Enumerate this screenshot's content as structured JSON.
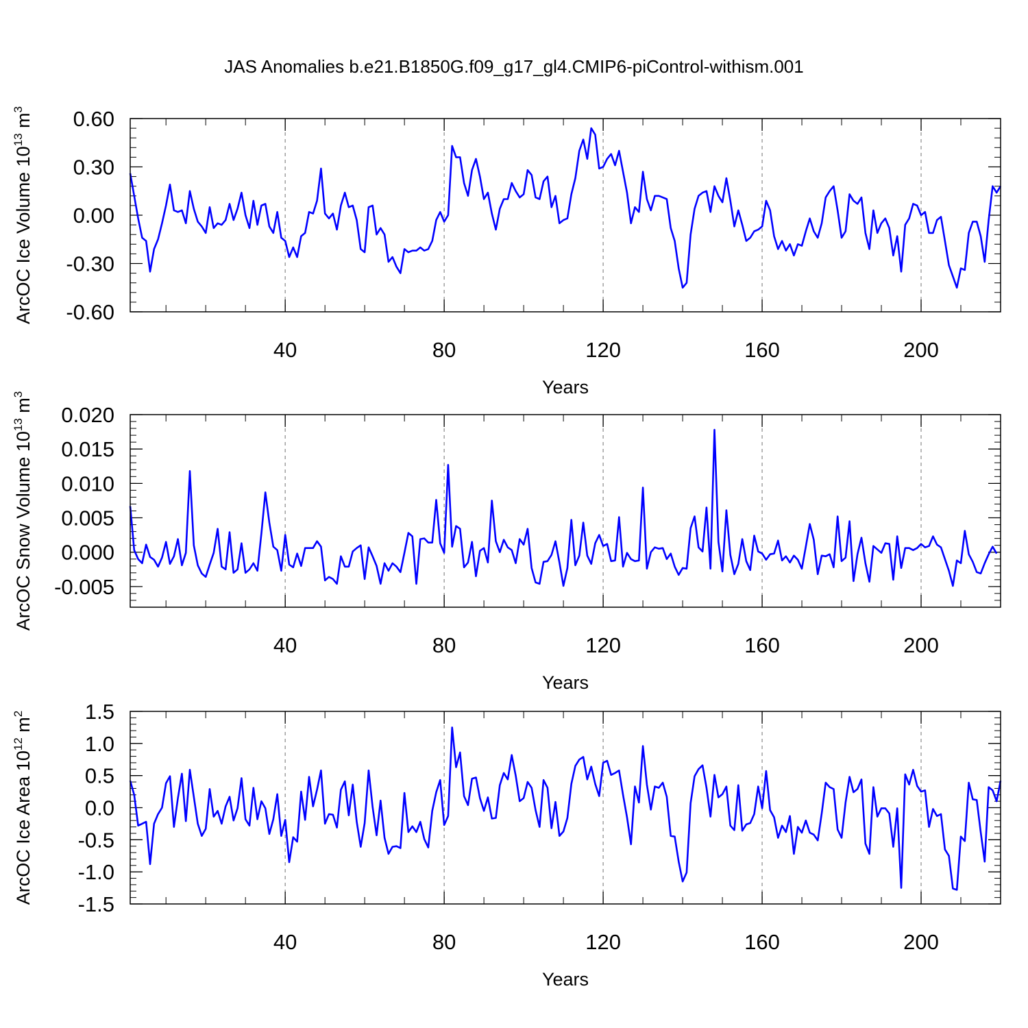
{
  "chart_data": {
    "type": "line",
    "title": "JAS Anomalies b.e21.B1850G.f09_g17_gl4.CMIP6-piControl-withism.001",
    "line_color": "#0000ff",
    "grid_color": "#888888",
    "x_range": [
      1,
      220
    ],
    "x_ticks": [
      40,
      80,
      120,
      160,
      200
    ],
    "x_tick_labels": [
      "40",
      "80",
      "120",
      "160",
      "200"
    ],
    "panels": [
      {
        "name": "ice-volume",
        "ylabel": "ArcOC Ice Volume 10",
        "ylabel_exp": "13",
        "ylabel_unit": " m",
        "ylabel_unit_exp": "3",
        "xlabel": "Years",
        "ylim": [
          -0.6,
          0.6
        ],
        "y_ticks": [
          -0.6,
          -0.3,
          0.0,
          0.3,
          0.6
        ],
        "y_tick_labels": [
          "-0.60",
          "-0.30",
          "0.00",
          "0.30",
          "0.60"
        ],
        "y_minor_step": 0.06,
        "values": [
          0.26,
          0.12,
          -0.02,
          -0.14,
          -0.16,
          -0.35,
          -0.21,
          -0.15,
          -0.05,
          0.06,
          0.19,
          0.03,
          0.02,
          0.03,
          -0.05,
          0.15,
          0.04,
          -0.04,
          -0.07,
          -0.11,
          0.05,
          -0.08,
          -0.05,
          -0.06,
          -0.03,
          0.07,
          -0.03,
          0.04,
          0.14,
          0.0,
          -0.08,
          0.09,
          -0.06,
          0.06,
          0.07,
          -0.07,
          -0.11,
          0.02,
          -0.14,
          -0.16,
          -0.26,
          -0.2,
          -0.26,
          -0.13,
          -0.11,
          0.02,
          0.01,
          0.09,
          0.29,
          0.01,
          -0.02,
          0.01,
          -0.09,
          0.06,
          0.14,
          0.05,
          0.06,
          -0.03,
          -0.21,
          -0.23,
          0.05,
          0.06,
          -0.12,
          -0.08,
          -0.12,
          -0.29,
          -0.26,
          -0.32,
          -0.36,
          -0.21,
          -0.23,
          -0.22,
          -0.22,
          -0.2,
          -0.22,
          -0.21,
          -0.16,
          -0.03,
          0.02,
          -0.04,
          0.0,
          0.43,
          0.36,
          0.36,
          0.2,
          0.12,
          0.28,
          0.35,
          0.24,
          0.1,
          0.14,
          0.01,
          -0.09,
          0.04,
          0.1,
          0.1,
          0.2,
          0.15,
          0.11,
          0.13,
          0.28,
          0.25,
          0.11,
          0.1,
          0.21,
          0.24,
          0.05,
          0.12,
          -0.05,
          -0.03,
          -0.02,
          0.13,
          0.23,
          0.4,
          0.47,
          0.35,
          0.54,
          0.5,
          0.29,
          0.3,
          0.35,
          0.38,
          0.31,
          0.4,
          0.27,
          0.14,
          -0.05,
          0.05,
          0.02,
          0.27,
          0.1,
          0.03,
          0.12,
          0.12,
          0.11,
          0.1,
          -0.08,
          -0.16,
          -0.33,
          -0.45,
          -0.42,
          -0.12,
          0.04,
          0.12,
          0.14,
          0.15,
          0.02,
          0.18,
          0.12,
          0.08,
          0.23,
          0.09,
          -0.07,
          0.03,
          -0.06,
          -0.16,
          -0.14,
          -0.1,
          -0.09,
          -0.07,
          0.09,
          0.03,
          -0.13,
          -0.21,
          -0.16,
          -0.22,
          -0.18,
          -0.25,
          -0.18,
          -0.19,
          -0.1,
          -0.02,
          -0.1,
          -0.14,
          -0.05,
          0.11,
          0.15,
          0.18,
          0.03,
          -0.14,
          -0.1,
          0.13,
          0.09,
          0.07,
          0.11,
          -0.11,
          -0.21,
          0.03,
          -0.11,
          -0.05,
          -0.02,
          -0.08,
          -0.25,
          -0.13,
          -0.35,
          -0.06,
          -0.02,
          0.07,
          0.06,
          0.0,
          0.02,
          -0.11,
          -0.11,
          -0.03,
          -0.01,
          -0.16,
          -0.31,
          -0.38,
          -0.45,
          -0.33,
          -0.34,
          -0.11,
          -0.04,
          -0.04,
          -0.13,
          -0.29,
          -0.03,
          0.18,
          0.14,
          0.18
        ]
      },
      {
        "name": "snow-volume",
        "ylabel": "ArcOC Snow Volume 10",
        "ylabel_exp": "13",
        "ylabel_unit": " m",
        "ylabel_unit_exp": "3",
        "xlabel": "Years",
        "ylim": [
          -0.008,
          0.02
        ],
        "y_ticks": [
          -0.005,
          0.0,
          0.005,
          0.01,
          0.015,
          0.02
        ],
        "y_tick_labels": [
          "-0.005",
          "0.000",
          "0.005",
          "0.010",
          "0.015",
          "0.020"
        ],
        "y_minor_step": 0.001,
        "values": [
          0.0067,
          0.0003,
          -0.001,
          -0.0016,
          0.0011,
          -0.0007,
          -0.0011,
          -0.0021,
          -0.0008,
          0.0015,
          -0.0017,
          -0.0006,
          0.0019,
          -0.0019,
          -0.0001,
          0.0118,
          0.001,
          -0.0019,
          -0.0031,
          -0.0036,
          -0.0018,
          -0.0001,
          0.0034,
          -0.0021,
          -0.0025,
          0.0029,
          -0.003,
          -0.0025,
          0.0013,
          -0.003,
          -0.0025,
          -0.0016,
          -0.0027,
          0.0027,
          0.0087,
          0.0043,
          0.0008,
          0.0003,
          -0.0027,
          0.0025,
          -0.0018,
          -0.0022,
          -0.0002,
          -0.002,
          0.0006,
          0.0006,
          0.0006,
          0.0016,
          0.0008,
          -0.0041,
          -0.0036,
          -0.0039,
          -0.0046,
          -0.0006,
          -0.0021,
          -0.0021,
          0.0001,
          0.0006,
          0.001,
          -0.0039,
          0.0007,
          -0.0006,
          -0.002,
          -0.0046,
          -0.0016,
          -0.0027,
          -0.0016,
          -0.0021,
          -0.0029,
          -0.0001,
          0.0028,
          0.0023,
          -0.0046,
          0.0019,
          0.002,
          0.0014,
          0.0014,
          0.0076,
          0.0013,
          -0.0001,
          0.0127,
          0.0008,
          0.0038,
          0.0034,
          -0.0022,
          -0.0015,
          0.0015,
          -0.0035,
          0.0002,
          0.0006,
          -0.0015,
          0.0075,
          0.0016,
          0.0,
          0.0018,
          0.0007,
          0.0003,
          -0.0016,
          0.0019,
          0.0011,
          0.0034,
          -0.0023,
          -0.0044,
          -0.0046,
          -0.0014,
          -0.0013,
          -0.0004,
          0.0016,
          -0.0015,
          -0.0049,
          -0.0023,
          0.0047,
          -0.0019,
          -0.0005,
          0.0043,
          -0.0005,
          -0.0017,
          0.0013,
          0.0025,
          0.0009,
          0.0012,
          -0.0013,
          -0.0012,
          0.0051,
          -0.0021,
          -0.0001,
          -0.001,
          -0.0013,
          -0.0012,
          0.0094,
          -0.0024,
          0.0,
          0.0007,
          0.0005,
          0.0006,
          -0.001,
          -0.0002,
          -0.0021,
          -0.0033,
          -0.0023,
          -0.0024,
          0.0035,
          0.0052,
          0.0007,
          0.0001,
          0.0065,
          -0.0024,
          0.0178,
          0.0015,
          -0.0028,
          0.0061,
          -0.0004,
          -0.0032,
          -0.0017,
          0.0019,
          -0.0013,
          -0.0026,
          0.0024,
          0.0001,
          -0.0002,
          -0.0011,
          -0.0003,
          -0.0002,
          0.0017,
          -0.0012,
          -0.0006,
          -0.0015,
          -0.0005,
          -0.0011,
          -0.0024,
          0.0008,
          0.0041,
          0.0018,
          -0.0032,
          -0.0005,
          -0.0006,
          -0.0003,
          -0.0022,
          0.0052,
          -0.0013,
          -0.0008,
          0.0045,
          -0.0042,
          -0.0003,
          0.0021,
          -0.0016,
          -0.0043,
          0.0009,
          0.0004,
          -0.0001,
          0.0013,
          0.0012,
          -0.004,
          0.0023,
          -0.0023,
          0.0006,
          0.0006,
          0.0003,
          0.0006,
          0.0012,
          0.0007,
          0.0009,
          0.0023,
          0.0011,
          0.0007,
          -0.001,
          -0.0027,
          -0.0049,
          -0.0012,
          -0.0016,
          0.0031,
          -0.0003,
          -0.0014,
          -0.0029,
          -0.0031,
          -0.0016,
          -0.0003,
          0.0008,
          -0.0002
        ]
      },
      {
        "name": "ice-area",
        "ylabel": "ArcOC Ice Area 10",
        "ylabel_exp": "12",
        "ylabel_unit": " m",
        "ylabel_unit_exp": "2",
        "xlabel": "Years",
        "ylim": [
          -1.5,
          1.5
        ],
        "y_ticks": [
          -1.5,
          -1.0,
          -0.5,
          0.0,
          0.5,
          1.0,
          1.5
        ],
        "y_tick_labels": [
          "-1.5",
          "-1.0",
          "-0.5",
          "0.0",
          "0.5",
          "1.0",
          "1.5"
        ],
        "y_minor_step": 0.1,
        "values": [
          0.42,
          0.2,
          -0.28,
          -0.25,
          -0.22,
          -0.88,
          -0.25,
          -0.1,
          0.0,
          0.38,
          0.49,
          -0.3,
          0.15,
          0.53,
          -0.21,
          0.59,
          0.17,
          -0.25,
          -0.44,
          -0.33,
          0.29,
          -0.14,
          -0.05,
          -0.25,
          0.02,
          0.17,
          -0.2,
          -0.01,
          0.46,
          -0.18,
          -0.28,
          0.31,
          -0.18,
          0.1,
          -0.01,
          -0.41,
          -0.18,
          0.21,
          -0.44,
          -0.19,
          -0.85,
          -0.46,
          -0.53,
          0.25,
          -0.19,
          0.48,
          0.02,
          0.28,
          0.58,
          -0.25,
          -0.1,
          -0.11,
          -0.31,
          0.28,
          0.41,
          -0.12,
          0.36,
          -0.22,
          -0.61,
          -0.24,
          0.58,
          0.01,
          -0.43,
          0.11,
          -0.47,
          -0.72,
          -0.61,
          -0.6,
          -0.63,
          0.23,
          -0.38,
          -0.29,
          -0.38,
          -0.22,
          -0.49,
          -0.62,
          -0.05,
          0.24,
          0.43,
          -0.27,
          -0.13,
          1.25,
          0.63,
          0.86,
          0.18,
          0.04,
          0.45,
          0.47,
          0.15,
          -0.05,
          0.16,
          -0.17,
          -0.16,
          0.35,
          0.54,
          0.44,
          0.82,
          0.5,
          0.1,
          0.15,
          0.4,
          0.31,
          -0.04,
          -0.3,
          0.43,
          0.31,
          -0.32,
          0.09,
          -0.44,
          -0.37,
          -0.16,
          0.37,
          0.65,
          0.75,
          0.79,
          0.44,
          0.64,
          0.37,
          0.18,
          0.7,
          0.73,
          0.51,
          0.54,
          0.58,
          0.2,
          -0.15,
          -0.57,
          0.33,
          0.08,
          0.96,
          0.36,
          -0.03,
          0.33,
          0.31,
          0.39,
          0.17,
          -0.44,
          -0.45,
          -0.84,
          -1.15,
          -1.01,
          0.07,
          0.49,
          0.6,
          0.66,
          0.31,
          -0.14,
          0.51,
          0.16,
          0.21,
          0.33,
          -0.28,
          -0.35,
          0.35,
          -0.36,
          -0.26,
          -0.24,
          -0.1,
          0.33,
          -0.01,
          0.57,
          -0.04,
          -0.15,
          -0.47,
          -0.28,
          -0.38,
          -0.13,
          -0.72,
          -0.3,
          -0.39,
          -0.2,
          -0.39,
          -0.42,
          -0.51,
          -0.09,
          0.39,
          0.32,
          0.29,
          -0.34,
          -0.47,
          0.08,
          0.48,
          0.24,
          0.29,
          0.44,
          -0.56,
          -0.72,
          0.32,
          -0.14,
          -0.01,
          -0.01,
          -0.09,
          -0.61,
          -0.01,
          -1.25,
          0.52,
          0.36,
          0.59,
          0.34,
          0.25,
          0.27,
          -0.3,
          -0.02,
          -0.13,
          -0.1,
          -0.65,
          -0.75,
          -1.26,
          -1.28,
          -0.45,
          -0.52,
          0.39,
          0.13,
          0.12,
          -0.38,
          -0.84,
          0.32,
          0.27,
          0.1,
          0.42
        ]
      }
    ]
  }
}
